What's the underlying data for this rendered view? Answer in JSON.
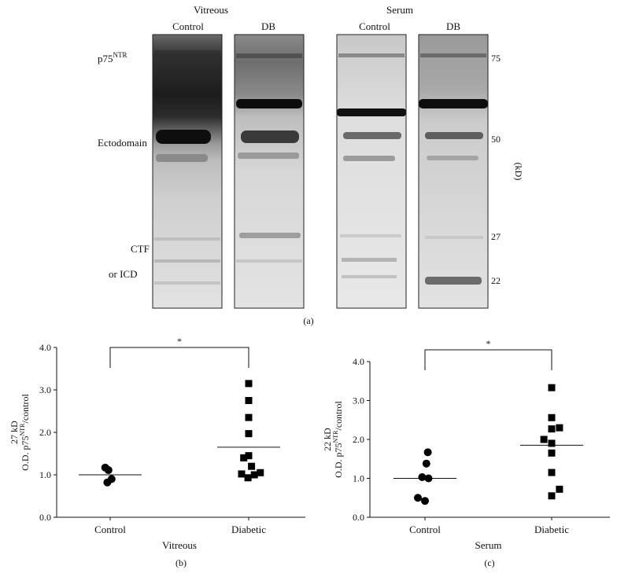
{
  "blot": {
    "group_labels": [
      "Vitreous",
      "Serum"
    ],
    "lanes": [
      "Control",
      "DB",
      "Control",
      "DB"
    ],
    "band_labels": {
      "p75_base": "p75",
      "p75_sup": "NTR",
      "ectodomain": "Ectodomain",
      "ctf": "CTF",
      "icd": "or ICD"
    },
    "markers": [
      "75",
      "50",
      "27",
      "22"
    ],
    "unit": "(kD)",
    "panel": "(a)"
  },
  "chart_data": [
    {
      "type": "scatter",
      "panel": "(b)",
      "title": "",
      "xlabel": "Vitreous",
      "ylabel_line1": "27 kD",
      "ylabel_line2_base": "O.D. p75",
      "ylabel_line2_sup": "NTR",
      "ylabel_line2_end": "/control",
      "categories": [
        "Control",
        "Diabetic"
      ],
      "yticks": [
        "0.0",
        "1.0",
        "2.0",
        "3.0",
        "4.0"
      ],
      "ylim": [
        0,
        4
      ],
      "significance": "*",
      "series": [
        {
          "category": "Control",
          "marker": "circle",
          "mean": 1.0,
          "points": [
            [
              -0.35,
              1.17
            ],
            [
              -0.12,
              1.11
            ],
            [
              -0.2,
              0.82
            ],
            [
              0.1,
              0.9
            ]
          ]
        },
        {
          "category": "Diabetic",
          "marker": "square",
          "mean": 1.65,
          "points": [
            [
              0,
              3.15
            ],
            [
              0,
              2.75
            ],
            [
              0,
              2.35
            ],
            [
              0,
              1.97
            ],
            [
              0,
              1.45
            ],
            [
              -0.35,
              1.4
            ],
            [
              0.2,
              1.2
            ],
            [
              -0.5,
              1.02
            ],
            [
              -0.05,
              0.93
            ],
            [
              0.4,
              1.0
            ],
            [
              0.82,
              1.05
            ]
          ]
        }
      ]
    },
    {
      "type": "scatter",
      "panel": "(c)",
      "title": "",
      "xlabel": "Serum",
      "ylabel_line1": "22 kD",
      "ylabel_line2_base": "O.D. p75",
      "ylabel_line2_sup": "NTR",
      "ylabel_line2_end": "/control",
      "categories": [
        "Control",
        "Diabetic"
      ],
      "yticks": [
        "0.0",
        "1.0",
        "2.0",
        "3.0",
        "4.0"
      ],
      "ylim": [
        0,
        4
      ],
      "significance": "*",
      "series": [
        {
          "category": "Control",
          "marker": "circle",
          "mean": 1.0,
          "points": [
            [
              0.2,
              1.67
            ],
            [
              0.1,
              1.38
            ],
            [
              -0.2,
              1.03
            ],
            [
              0.25,
              1.0
            ],
            [
              0.0,
              0.42
            ],
            [
              -0.5,
              0.5
            ]
          ]
        },
        {
          "category": "Diabetic",
          "marker": "square",
          "mean": 1.85,
          "points": [
            [
              0,
              3.33
            ],
            [
              0,
              2.56
            ],
            [
              0,
              2.27
            ],
            [
              0.55,
              2.3
            ],
            [
              -0.55,
              2.0
            ],
            [
              0,
              1.9
            ],
            [
              0,
              1.65
            ],
            [
              0,
              1.15
            ],
            [
              0.55,
              0.72
            ],
            [
              0,
              0.55
            ]
          ]
        }
      ]
    }
  ]
}
